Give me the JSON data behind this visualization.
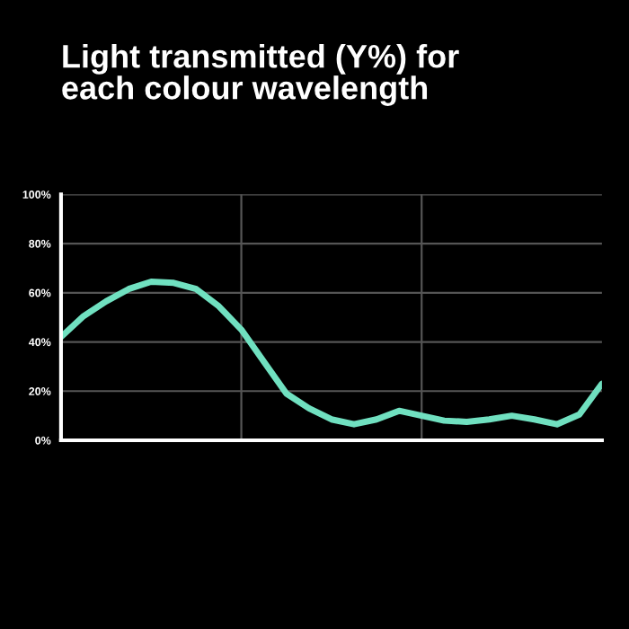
{
  "chart_data": {
    "type": "line",
    "title": "Light transmitted (Y%) for\neach colour wavelength",
    "categories": [
      null,
      null,
      null,
      null,
      null,
      null,
      null,
      null,
      null,
      null,
      null,
      null,
      null,
      null,
      null,
      null,
      null,
      null,
      null,
      null,
      null,
      null,
      null,
      null,
      null
    ],
    "series": [
      {
        "values": [
          42,
          50.5,
          56.5,
          61.5,
          64.5,
          64,
          61.5,
          54.5,
          45,
          32,
          19,
          13,
          8.5,
          6.5,
          8.5,
          12,
          10,
          8,
          7.5,
          8.5,
          10,
          8.5,
          6.5,
          10.5,
          23
        ],
        "color": "#70e0c0"
      }
    ],
    "ylim": [
      0,
      100
    ],
    "yticks": [
      {
        "value": 0,
        "label": "0%"
      },
      {
        "value": 20,
        "label": "20%"
      },
      {
        "value": 40,
        "label": "40%"
      },
      {
        "value": 60,
        "label": "60%"
      },
      {
        "value": 80,
        "label": "80%"
      },
      {
        "value": 100,
        "label": "100%"
      }
    ],
    "grid": true,
    "tick_labels": "y"
  }
}
